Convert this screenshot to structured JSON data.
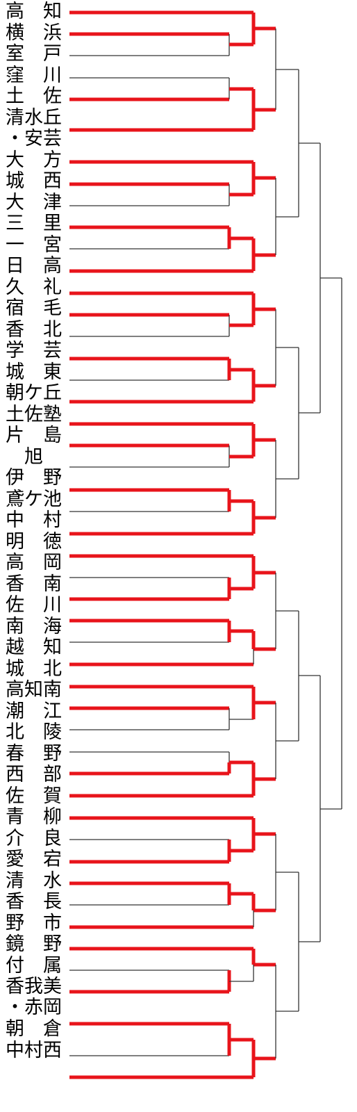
{
  "teams": [
    {
      "name": "高　知",
      "line2": ""
    },
    {
      "name": "横　浜",
      "line2": ""
    },
    {
      "name": "室　戸",
      "line2": ""
    },
    {
      "name": "窪　川",
      "line2": ""
    },
    {
      "name": "土　佐",
      "line2": ""
    },
    {
      "name": "清水丘",
      "line2": "・安芸"
    },
    {
      "name": "大　方",
      "line2": ""
    },
    {
      "name": "城　西",
      "line2": ""
    },
    {
      "name": "大　津",
      "line2": ""
    },
    {
      "name": "三　里",
      "line2": ""
    },
    {
      "name": "一　宮",
      "line2": ""
    },
    {
      "name": "日　高",
      "line2": ""
    },
    {
      "name": "久　礼",
      "line2": ""
    },
    {
      "name": "宿　毛",
      "line2": ""
    },
    {
      "name": "香　北",
      "line2": ""
    },
    {
      "name": "学　芸",
      "line2": ""
    },
    {
      "name": "城　東",
      "line2": ""
    },
    {
      "name": "朝ケ丘",
      "line2": ""
    },
    {
      "name": "土佐塾",
      "line2": ""
    },
    {
      "name": "片　島",
      "line2": ""
    },
    {
      "name": "　旭",
      "line2": ""
    },
    {
      "name": "伊　野",
      "line2": ""
    },
    {
      "name": "鳶ケ池",
      "line2": ""
    },
    {
      "name": "中　村",
      "line2": ""
    },
    {
      "name": "明　徳",
      "line2": ""
    },
    {
      "name": "高　岡",
      "line2": ""
    },
    {
      "name": "香　南",
      "line2": ""
    },
    {
      "name": "佐　川",
      "line2": ""
    },
    {
      "name": "南　海",
      "line2": ""
    },
    {
      "name": "越　知",
      "line2": ""
    },
    {
      "name": "城　北",
      "line2": ""
    },
    {
      "name": "高知南",
      "line2": ""
    },
    {
      "name": "潮　江",
      "line2": ""
    },
    {
      "name": "北　陵",
      "line2": ""
    },
    {
      "name": "春　野",
      "line2": ""
    },
    {
      "name": "西　部",
      "line2": ""
    },
    {
      "name": "佐　賀",
      "line2": ""
    },
    {
      "name": "青　柳",
      "line2": ""
    },
    {
      "name": "介　良",
      "line2": ""
    },
    {
      "name": "愛　宕",
      "line2": ""
    },
    {
      "name": "清　水",
      "line2": ""
    },
    {
      "name": "香　長",
      "line2": ""
    },
    {
      "name": "野　市",
      "line2": ""
    },
    {
      "name": "鏡　野",
      "line2": ""
    },
    {
      "name": "付　属",
      "line2": ""
    },
    {
      "name": "香我美",
      "line2": "・赤岡"
    },
    {
      "name": "朝　倉",
      "line2": ""
    },
    {
      "name": "中村西",
      "line2": ""
    }
  ],
  "colors": {
    "winner_line": "#e8141b",
    "loser_line": "#333333"
  }
}
